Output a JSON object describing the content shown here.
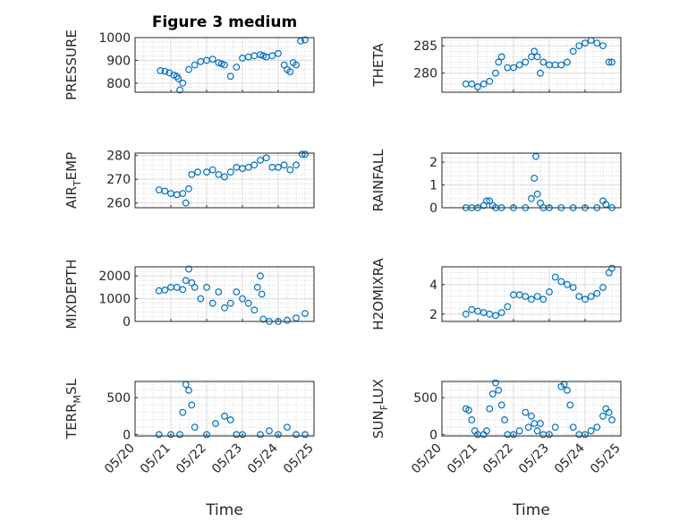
{
  "title": "Figure 3 medium",
  "xlabel": "Time",
  "x_tick_labels": [
    "05/20",
    "05/21",
    "05/22",
    "05/23",
    "05/24",
    "05/25"
  ],
  "marker_color": "#0072BD",
  "chart_data": [
    {
      "type": "scatter",
      "name": "pressure",
      "ylabel": "PRESSURE",
      "xlim": [
        "05/20",
        "05/25"
      ],
      "ylim": [
        760,
        1000
      ],
      "yticks": [
        800,
        900,
        1000
      ],
      "x": [
        "05/20 17:00",
        "05/20 20:00",
        "05/20 23:00",
        "05/21 02:00",
        "05/21 04:00",
        "05/21 05:00",
        "05/21 06:00",
        "05/21 08:00",
        "05/21 12:00",
        "05/21 16:00",
        "05/21 20:00",
        "05/22 00:00",
        "05/22 04:00",
        "05/22 08:00",
        "05/22 10:00",
        "05/22 12:00",
        "05/22 16:00",
        "05/22 20:00",
        "05/23 00:00",
        "05/23 04:00",
        "05/23 08:00",
        "05/23 12:00",
        "05/23 14:00",
        "05/23 16:00",
        "05/23 20:00",
        "05/24 00:00",
        "05/24 04:00",
        "05/24 06:00",
        "05/24 08:00",
        "05/24 10:00",
        "05/24 12:00",
        "05/24 15:00",
        "05/24 18:00"
      ],
      "y": [
        855,
        852,
        845,
        835,
        830,
        820,
        770,
        800,
        860,
        880,
        895,
        900,
        905,
        890,
        885,
        880,
        830,
        870,
        910,
        915,
        920,
        925,
        920,
        915,
        920,
        930,
        880,
        860,
        850,
        890,
        880,
        985,
        990
      ]
    },
    {
      "type": "scatter",
      "name": "theta",
      "ylabel": "THETA",
      "xlim": [
        "05/20",
        "05/25"
      ],
      "ylim": [
        276.5,
        286.5
      ],
      "yticks": [
        280,
        285
      ],
      "x": [
        "05/20 16:00",
        "05/20 20:00",
        "05/21 00:00",
        "05/21 04:00",
        "05/21 08:00",
        "05/21 12:00",
        "05/21 14:00",
        "05/21 16:00",
        "05/21 20:00",
        "05/22 00:00",
        "05/22 04:00",
        "05/22 08:00",
        "05/22 12:00",
        "05/22 14:00",
        "05/22 16:00",
        "05/22 18:00",
        "05/22 20:00",
        "05/23 00:00",
        "05/23 04:00",
        "05/23 08:00",
        "05/23 12:00",
        "05/23 16:00",
        "05/23 20:00",
        "05/24 00:00",
        "05/24 04:00",
        "05/24 08:00",
        "05/24 12:00",
        "05/24 16:00",
        "05/24 18:00"
      ],
      "y": [
        278,
        278,
        277.5,
        278,
        278.5,
        280,
        282,
        283,
        281,
        281,
        281.5,
        282,
        283,
        284,
        283,
        280,
        282,
        281.5,
        281.5,
        281.5,
        282,
        284,
        285,
        285.5,
        286,
        285.5,
        285,
        282,
        282
      ]
    },
    {
      "type": "scatter",
      "name": "air_temp",
      "ylabel_parts": [
        "AIR",
        "T",
        "EMP"
      ],
      "xlim": [
        "05/20",
        "05/25"
      ],
      "ylim": [
        258,
        281
      ],
      "yticks": [
        260,
        270,
        280
      ],
      "x": [
        "05/20 16:00",
        "05/20 20:00",
        "05/21 00:00",
        "05/21 04:00",
        "05/21 08:00",
        "05/21 10:00",
        "05/21 12:00",
        "05/21 14:00",
        "05/21 18:00",
        "05/22 00:00",
        "05/22 04:00",
        "05/22 08:00",
        "05/22 12:00",
        "05/22 16:00",
        "05/22 20:00",
        "05/23 00:00",
        "05/23 04:00",
        "05/23 08:00",
        "05/23 12:00",
        "05/23 16:00",
        "05/23 20:00",
        "05/24 00:00",
        "05/24 04:00",
        "05/24 08:00",
        "05/24 12:00",
        "05/24 16:00",
        "05/24 18:00"
      ],
      "y": [
        265.5,
        265,
        264,
        263.5,
        264,
        260,
        266,
        272,
        273,
        273,
        274,
        272,
        271,
        273,
        275,
        274.5,
        275,
        276,
        278,
        279,
        275,
        275,
        276,
        274,
        276,
        280.5,
        280.5
      ]
    },
    {
      "type": "scatter",
      "name": "rainfall",
      "ylabel": "RAINFALL",
      "xlim": [
        "05/20",
        "05/25"
      ],
      "ylim": [
        0,
        2.4
      ],
      "yticks": [
        0,
        1,
        2
      ],
      "x": [
        "05/20 16:00",
        "05/20 20:00",
        "05/21 00:00",
        "05/21 04:00",
        "05/21 06:00",
        "05/21 08:00",
        "05/21 10:00",
        "05/21 12:00",
        "05/21 16:00",
        "05/22 00:00",
        "05/22 08:00",
        "05/22 12:00",
        "05/22 14:00",
        "05/22 15:00",
        "05/22 16:00",
        "05/22 18:00",
        "05/22 20:00",
        "05/23 00:00",
        "05/23 08:00",
        "05/23 16:00",
        "05/24 00:00",
        "05/24 08:00",
        "05/24 12:00",
        "05/24 14:00",
        "05/24 18:00"
      ],
      "y": [
        0,
        0,
        0,
        0.1,
        0.3,
        0.3,
        0.1,
        0,
        0,
        0,
        0,
        0.4,
        1.3,
        2.25,
        0.6,
        0.2,
        0,
        0,
        0,
        0,
        0,
        0,
        0.3,
        0.15,
        0
      ]
    },
    {
      "type": "scatter",
      "name": "mixdepth",
      "ylabel": "MIXDEPTH",
      "xlim": [
        "05/20",
        "05/25"
      ],
      "ylim": [
        0,
        2400
      ],
      "yticks": [
        0,
        1000,
        2000
      ],
      "x": [
        "05/20 16:00",
        "05/20 20:00",
        "05/21 00:00",
        "05/21 04:00",
        "05/21 08:00",
        "05/21 10:00",
        "05/21 12:00",
        "05/21 14:00",
        "05/21 16:00",
        "05/21 20:00",
        "05/22 00:00",
        "05/22 04:00",
        "05/22 08:00",
        "05/22 12:00",
        "05/22 16:00",
        "05/22 20:00",
        "05/23 00:00",
        "05/23 04:00",
        "05/23 08:00",
        "05/23 10:00",
        "05/23 12:00",
        "05/23 13:00",
        "05/23 14:00",
        "05/23 18:00",
        "05/24 00:00",
        "05/24 06:00",
        "05/24 12:00",
        "05/24 18:00"
      ],
      "y": [
        1350,
        1380,
        1500,
        1500,
        1400,
        1800,
        2300,
        1700,
        1500,
        1000,
        1500,
        800,
        1300,
        600,
        800,
        1300,
        1000,
        800,
        500,
        1500,
        2000,
        1200,
        100,
        0,
        0,
        50,
        150,
        350
      ]
    },
    {
      "type": "scatter",
      "name": "h2omixra",
      "ylabel": "H2OMIXRA",
      "xlim": [
        "05/20",
        "05/25"
      ],
      "ylim": [
        1.5,
        5.2
      ],
      "yticks": [
        2,
        4
      ],
      "x": [
        "05/20 16:00",
        "05/20 20:00",
        "05/21 00:00",
        "05/21 04:00",
        "05/21 08:00",
        "05/21 12:00",
        "05/21 16:00",
        "05/21 20:00",
        "05/22 00:00",
        "05/22 04:00",
        "05/22 08:00",
        "05/22 12:00",
        "05/22 16:00",
        "05/22 20:00",
        "05/23 00:00",
        "05/23 04:00",
        "05/23 08:00",
        "05/23 12:00",
        "05/23 16:00",
        "05/23 20:00",
        "05/24 00:00",
        "05/24 04:00",
        "05/24 08:00",
        "05/24 12:00",
        "05/24 16:00",
        "05/24 18:00"
      ],
      "y": [
        2,
        2.3,
        2.2,
        2.1,
        2,
        1.9,
        2.1,
        2.5,
        3.3,
        3.3,
        3.2,
        3,
        3.2,
        3,
        3.5,
        4.5,
        4.2,
        4,
        3.8,
        3.2,
        3,
        3.2,
        3.4,
        3.8,
        4.8,
        5.1
      ]
    },
    {
      "type": "scatter",
      "name": "terr_msl",
      "ylabel_parts": [
        "TERR",
        "M",
        "SL"
      ],
      "xlim": [
        "05/20",
        "05/25"
      ],
      "ylim": [
        -20,
        720
      ],
      "yticks": [
        0,
        500
      ],
      "x": [
        "05/20 16:00",
        "05/21 00:00",
        "05/21 06:00",
        "05/21 08:00",
        "05/21 10:00",
        "05/21 12:00",
        "05/21 14:00",
        "05/21 16:00",
        "05/22 00:00",
        "05/22 06:00",
        "05/22 12:00",
        "05/22 16:00",
        "05/22 20:00",
        "05/23 00:00",
        "05/23 12:00",
        "05/23 18:00",
        "05/24 00:00",
        "05/24 06:00",
        "05/24 12:00",
        "05/24 18:00"
      ],
      "y": [
        0,
        0,
        0,
        300,
        680,
        600,
        400,
        100,
        0,
        150,
        250,
        200,
        0,
        0,
        0,
        50,
        0,
        100,
        0,
        0
      ]
    },
    {
      "type": "scatter",
      "name": "sun_flux",
      "ylabel_parts": [
        "SUN",
        "F",
        "LUX"
      ],
      "xlim": [
        "05/20",
        "05/25"
      ],
      "ylim": [
        -20,
        720
      ],
      "yticks": [
        0,
        500
      ],
      "x": [
        "05/20 16:00",
        "05/20 18:00",
        "05/20 20:00",
        "05/20 22:00",
        "05/21 00:00",
        "05/21 04:00",
        "05/21 06:00",
        "05/21 08:00",
        "05/21 10:00",
        "05/21 12:00",
        "05/21 14:00",
        "05/21 16:00",
        "05/21 18:00",
        "05/21 20:00",
        "05/22 00:00",
        "05/22 04:00",
        "05/22 08:00",
        "05/22 10:00",
        "05/22 12:00",
        "05/22 14:00",
        "05/22 16:00",
        "05/22 18:00",
        "05/22 20:00",
        "05/23 00:00",
        "05/23 04:00",
        "05/23 08:00",
        "05/23 10:00",
        "05/23 12:00",
        "05/23 14:00",
        "05/23 16:00",
        "05/23 20:00",
        "05/24 00:00",
        "05/24 04:00",
        "05/24 08:00",
        "05/24 12:00",
        "05/24 14:00",
        "05/24 16:00",
        "05/24 18:00"
      ],
      "y": [
        350,
        330,
        200,
        50,
        0,
        0,
        50,
        350,
        550,
        700,
        600,
        400,
        200,
        0,
        0,
        50,
        300,
        100,
        250,
        150,
        50,
        150,
        0,
        0,
        100,
        650,
        680,
        600,
        400,
        100,
        0,
        0,
        50,
        100,
        250,
        350,
        300,
        200
      ]
    }
  ]
}
